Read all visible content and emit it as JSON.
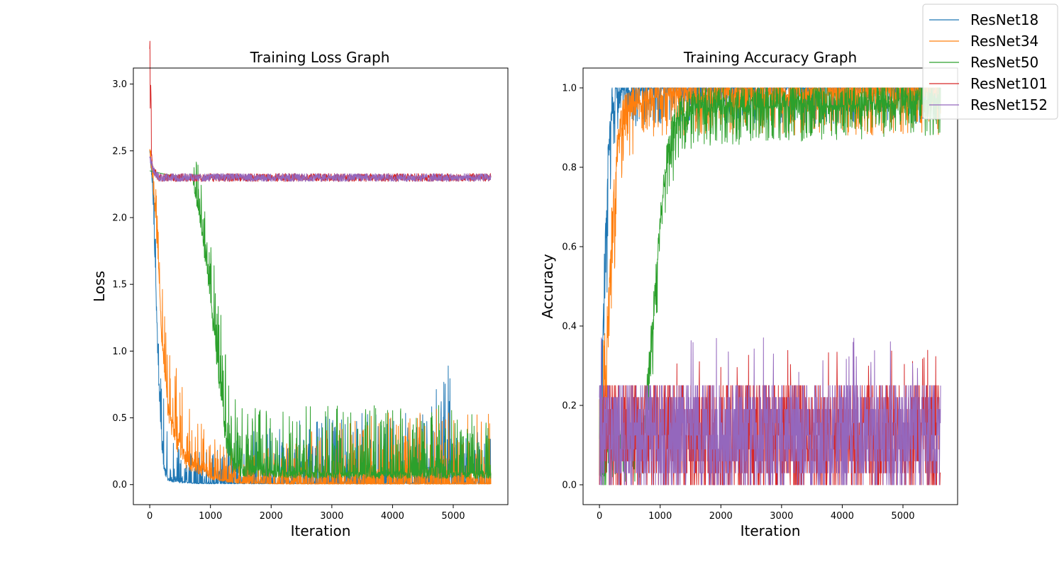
{
  "chart_data": [
    {
      "type": "line",
      "title": "Training Loss Graph",
      "xlabel": "Iteration",
      "ylabel": "Loss",
      "xlim": [
        -270,
        5900
      ],
      "ylim": [
        -0.15,
        3.12
      ],
      "xticks": [
        0,
        1000,
        2000,
        3000,
        4000,
        5000
      ],
      "yticks": [
        0.0,
        0.5,
        1.0,
        1.5,
        2.0,
        2.5,
        3.0
      ],
      "xtick_labels": [
        "0",
        "1000",
        "2000",
        "3000",
        "4000",
        "5000"
      ],
      "ytick_labels": [
        "0.0",
        "0.5",
        "1.0",
        "1.5",
        "2.0",
        "2.5",
        "3.0"
      ],
      "grid": false,
      "series": [
        {
          "name": "ResNet18",
          "color": "#1f77b4",
          "values": [
            [
              0,
              2.5
            ],
            [
              50,
              2.2
            ],
            [
              100,
              1.5
            ],
            [
              150,
              0.8
            ],
            [
              200,
              0.35
            ],
            [
              250,
              0.12
            ],
            [
              300,
              0.06
            ],
            [
              400,
              0.03
            ],
            [
              600,
              0.02
            ],
            [
              800,
              0.01
            ],
            [
              1000,
              0.01
            ],
            [
              2000,
              0.01
            ],
            [
              3000,
              0.01
            ],
            [
              4000,
              0.01
            ],
            [
              4950,
              0.01
            ],
            [
              5000,
              0.01
            ],
            [
              5620,
              0.01
            ]
          ],
          "noise_top": [
            [
              0,
              2.6
            ],
            [
              100,
              2.0
            ],
            [
              200,
              0.9
            ],
            [
              300,
              0.4
            ],
            [
              400,
              0.3
            ],
            [
              700,
              0.25
            ],
            [
              1500,
              0.4
            ],
            [
              2500,
              0.5
            ],
            [
              3500,
              0.55
            ],
            [
              4500,
              0.55
            ],
            [
              4950,
              1.14
            ],
            [
              5000,
              0.5
            ],
            [
              5620,
              0.35
            ]
          ]
        },
        {
          "name": "ResNet34",
          "color": "#ff7f0e",
          "values": [
            [
              0,
              2.5
            ],
            [
              50,
              2.3
            ],
            [
              100,
              2.0
            ],
            [
              150,
              1.6
            ],
            [
              200,
              1.1
            ],
            [
              300,
              0.6
            ],
            [
              400,
              0.4
            ],
            [
              600,
              0.22
            ],
            [
              800,
              0.15
            ],
            [
              1000,
              0.08
            ],
            [
              1200,
              0.04
            ],
            [
              1500,
              0.015
            ],
            [
              2000,
              0.008
            ],
            [
              3000,
              0.006
            ],
            [
              4000,
              0.006
            ],
            [
              5000,
              0.006
            ],
            [
              5620,
              0.006
            ]
          ],
          "noise_top": [
            [
              0,
              2.7
            ],
            [
              100,
              2.3
            ],
            [
              200,
              1.6
            ],
            [
              300,
              1.1
            ],
            [
              500,
              0.8
            ],
            [
              800,
              0.6
            ],
            [
              1100,
              0.4
            ],
            [
              1500,
              0.25
            ],
            [
              2000,
              0.3
            ],
            [
              3000,
              0.45
            ],
            [
              4000,
              0.55
            ],
            [
              5000,
              0.6
            ],
            [
              5620,
              0.6
            ]
          ]
        },
        {
          "name": "ResNet50",
          "color": "#2ca02c",
          "values": [
            [
              0,
              2.35
            ],
            [
              300,
              2.32
            ],
            [
              700,
              2.3
            ],
            [
              750,
              2.2
            ],
            [
              850,
              1.95
            ],
            [
              950,
              1.6
            ],
            [
              1050,
              1.2
            ],
            [
              1150,
              0.8
            ],
            [
              1250,
              0.4
            ],
            [
              1350,
              0.2
            ],
            [
              1500,
              0.12
            ],
            [
              2000,
              0.1
            ],
            [
              3000,
              0.09
            ],
            [
              4000,
              0.09
            ],
            [
              5000,
              0.09
            ],
            [
              5620,
              0.09
            ]
          ],
          "noise_top": [
            [
              700,
              2.3
            ],
            [
              750,
              2.48
            ],
            [
              900,
              2.2
            ],
            [
              1100,
              1.5
            ],
            [
              1300,
              0.9
            ],
            [
              1500,
              0.6
            ],
            [
              2000,
              0.55
            ],
            [
              2800,
              0.65
            ],
            [
              3600,
              0.65
            ],
            [
              4200,
              0.6
            ],
            [
              5000,
              0.6
            ],
            [
              5620,
              0.45
            ]
          ]
        },
        {
          "name": "ResNet101",
          "color": "#d62728",
          "values": [
            [
              0,
              2.97
            ],
            [
              20,
              2.5
            ],
            [
              60,
              2.35
            ],
            [
              150,
              2.3
            ],
            [
              400,
              2.3
            ],
            [
              5620,
              2.3
            ]
          ],
          "noise_top": [
            [
              0,
              2.97
            ],
            [
              150,
              2.37
            ],
            [
              1000,
              2.34
            ],
            [
              5620,
              2.33
            ]
          ]
        },
        {
          "name": "ResNet152",
          "color": "#9467bd",
          "values": [
            [
              0,
              2.45
            ],
            [
              60,
              2.35
            ],
            [
              150,
              2.3
            ],
            [
              400,
              2.3
            ],
            [
              5620,
              2.3
            ]
          ],
          "noise_top": [
            [
              0,
              2.5
            ],
            [
              150,
              2.36
            ],
            [
              1000,
              2.33
            ],
            [
              5620,
              2.32
            ]
          ]
        }
      ]
    },
    {
      "type": "line",
      "title": "Training Accuracy Graph",
      "xlabel": "Iteration",
      "ylabel": "Accuracy",
      "xlim": [
        -270,
        5900
      ],
      "ylim": [
        -0.05,
        1.05
      ],
      "xticks": [
        0,
        1000,
        2000,
        3000,
        4000,
        5000
      ],
      "yticks": [
        0.0,
        0.2,
        0.4,
        0.6,
        0.8,
        1.0
      ],
      "xtick_labels": [
        "0",
        "1000",
        "2000",
        "3000",
        "4000",
        "5000"
      ],
      "ytick_labels": [
        "0.0",
        "0.2",
        "0.4",
        "0.6",
        "0.8",
        "1.0"
      ],
      "grid": false,
      "series": [
        {
          "name": "ResNet18",
          "color": "#1f77b4",
          "values": [
            [
              0,
              0.1
            ],
            [
              50,
              0.3
            ],
            [
              100,
              0.6
            ],
            [
              150,
              0.85
            ],
            [
              200,
              0.95
            ],
            [
              300,
              0.99
            ],
            [
              1000,
              1.0
            ],
            [
              5620,
              1.0
            ]
          ],
          "noise_bottom": [
            [
              0,
              0.0
            ],
            [
              100,
              0.3
            ],
            [
              200,
              0.8
            ],
            [
              400,
              0.9
            ],
            [
              1000,
              0.91
            ],
            [
              5620,
              0.91
            ]
          ]
        },
        {
          "name": "ResNet34",
          "color": "#ff7f0e",
          "values": [
            [
              0,
              0.1
            ],
            [
              100,
              0.3
            ],
            [
              200,
              0.65
            ],
            [
              300,
              0.85
            ],
            [
              400,
              0.93
            ],
            [
              600,
              0.96
            ],
            [
              1000,
              0.98
            ],
            [
              5620,
              0.99
            ]
          ],
          "noise_bottom": [
            [
              0,
              0.0
            ],
            [
              200,
              0.45
            ],
            [
              400,
              0.8
            ],
            [
              700,
              0.86
            ],
            [
              1000,
              0.88
            ],
            [
              5620,
              0.88
            ]
          ]
        },
        {
          "name": "ResNet50",
          "color": "#2ca02c",
          "values": [
            [
              0,
              0.11
            ],
            [
              700,
              0.11
            ],
            [
              800,
              0.25
            ],
            [
              900,
              0.45
            ],
            [
              1000,
              0.65
            ],
            [
              1100,
              0.8
            ],
            [
              1200,
              0.88
            ],
            [
              1300,
              0.93
            ],
            [
              1600,
              0.95
            ],
            [
              5620,
              0.96
            ]
          ],
          "noise_bottom": [
            [
              700,
              0.0
            ],
            [
              900,
              0.3
            ],
            [
              1100,
              0.7
            ],
            [
              1300,
              0.8
            ],
            [
              1600,
              0.85
            ],
            [
              5620,
              0.88
            ]
          ]
        },
        {
          "name": "ResNet101",
          "color": "#d62728",
          "values": [
            [
              0,
              0.1
            ],
            [
              5620,
              0.1
            ]
          ],
          "noise_range": [
            0.0,
            0.34
          ]
        },
        {
          "name": "ResNet152",
          "color": "#9467bd",
          "values": [
            [
              0,
              0.1
            ],
            [
              5620,
              0.1
            ]
          ],
          "noise_range": [
            0.0,
            0.38
          ]
        }
      ]
    }
  ],
  "legend": {
    "placement": "top-right",
    "entries": [
      "ResNet18",
      "ResNet34",
      "ResNet50",
      "ResNet101",
      "ResNet152"
    ]
  }
}
